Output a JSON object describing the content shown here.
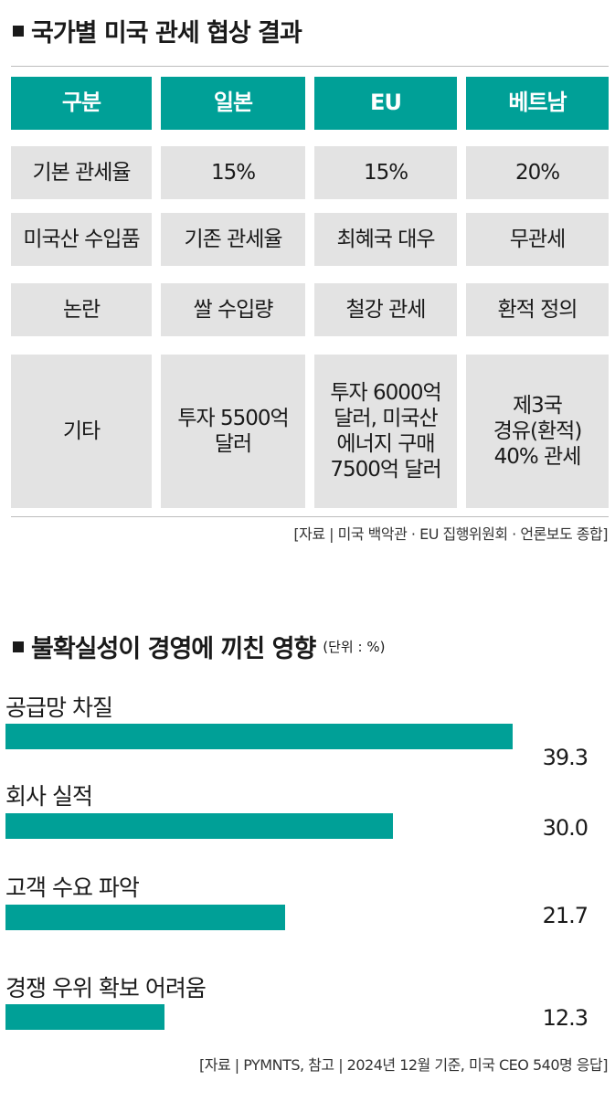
{
  "table_title": "국가별 미국 관세 협상 결과",
  "table": {
    "headers": [
      "구분",
      "일본",
      "EU",
      "베트남"
    ],
    "rows": [
      [
        "기본 관세율",
        "15%",
        "15%",
        "20%"
      ],
      [
        "미국산 수입품",
        "기존 관세율",
        "최혜국 대우",
        "무관세"
      ],
      [
        "논란",
        "쌀 수입량",
        "철강 관세",
        "환적 정의"
      ],
      [
        "기타",
        "투자 5500억\n달러",
        "투자 6000억\n달러, 미국산\n에너지 구매\n7500억 달러",
        "제3국\n경유(환적)\n40% 관세"
      ]
    ]
  },
  "table_source": "[자료 | 미국 백악관 · EU 집행위원회 · 언론보도 종합]",
  "colors": {
    "accent": "#00a097",
    "cell_bg": "#e3e3e3"
  },
  "chart_data": {
    "type": "bar",
    "orientation": "horizontal",
    "title": "불확실성이 경영에 끼친 영향",
    "unit": "(단위 : %)",
    "categories": [
      "공급망 차질",
      "회사 실적",
      "고객 수요 파악",
      "경쟁 우위 확보 어려움"
    ],
    "values": [
      39.3,
      30.0,
      21.7,
      12.3
    ],
    "value_labels": [
      "39.3",
      "30.0",
      "21.7",
      "12.3"
    ],
    "xlim": [
      0,
      39.3
    ],
    "grid": false
  },
  "chart_source": "[자료 | PYMNTS, 참고 | 2024년 12월 기준, 미국 CEO 540명 응답]"
}
